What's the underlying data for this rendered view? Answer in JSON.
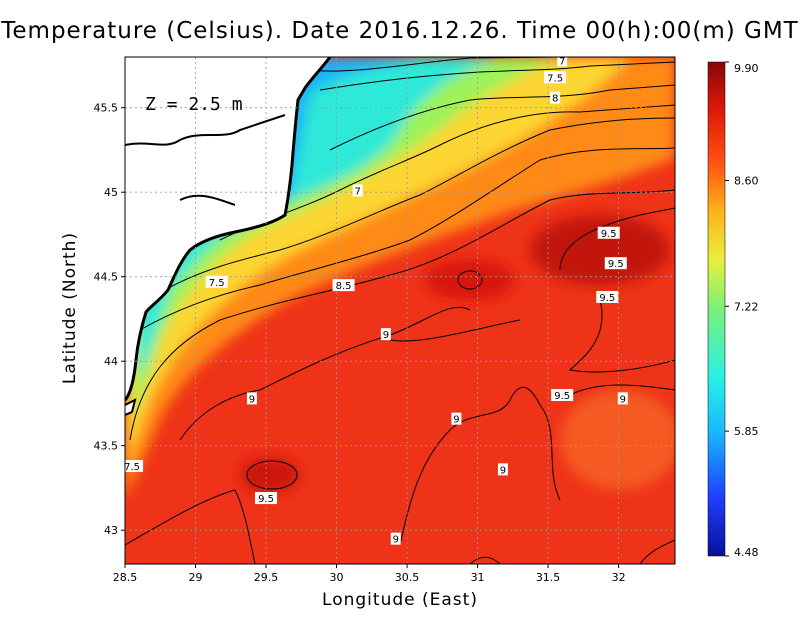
{
  "chart_data": {
    "type": "heatmap",
    "title": "Temperature (Celsius). Date 2016.12.26. Time 00(h):00(m)  GMT",
    "xlabel": "Longitude (East)",
    "ylabel": "Latitude (North)",
    "annotation": "Z = 2.5 m",
    "xlim": [
      28.5,
      32.4
    ],
    "ylim": [
      42.8,
      45.8
    ],
    "x_ticks": [
      "28.5",
      "29",
      "29.5",
      "30",
      "30.5",
      "31",
      "31.5",
      "32"
    ],
    "x_tick_values": [
      28.5,
      29,
      29.5,
      30,
      30.5,
      31,
      31.5,
      32
    ],
    "y_ticks": [
      "43",
      "43.5",
      "44",
      "44.5",
      "45",
      "45.5"
    ],
    "y_tick_values": [
      43,
      43.5,
      44,
      44.5,
      45,
      45.5
    ],
    "colorbar": {
      "min": 4.48,
      "max": 9.9,
      "tick_labels": [
        "9.90",
        "8.60",
        "7.22",
        "5.85",
        "4.48"
      ],
      "tick_values": [
        9.9,
        8.6,
        7.22,
        5.85,
        4.48
      ]
    },
    "grid": true,
    "colors": {
      "land": "#ffffff",
      "coast": "#000000",
      "contour": "#000000"
    },
    "contour_labels": [
      {
        "text": "7",
        "lon": 31.6,
        "lat": 45.78
      },
      {
        "text": "7.5",
        "lon": 31.55,
        "lat": 45.68
      },
      {
        "text": "8",
        "lon": 31.55,
        "lat": 45.56
      },
      {
        "text": "7",
        "lon": 30.15,
        "lat": 45.01
      },
      {
        "text": "9.5",
        "lon": 31.93,
        "lat": 44.76
      },
      {
        "text": "9.5",
        "lon": 31.98,
        "lat": 44.58
      },
      {
        "text": "7.5",
        "lon": 29.15,
        "lat": 44.47
      },
      {
        "text": "8.5",
        "lon": 30.05,
        "lat": 44.45
      },
      {
        "text": "9.5",
        "lon": 31.92,
        "lat": 44.38
      },
      {
        "text": "9",
        "lon": 30.35,
        "lat": 44.16
      },
      {
        "text": "9.5",
        "lon": 31.6,
        "lat": 43.8
      },
      {
        "text": "9",
        "lon": 32.03,
        "lat": 43.78
      },
      {
        "text": "9",
        "lon": 29.4,
        "lat": 43.78
      },
      {
        "text": "9",
        "lon": 30.85,
        "lat": 43.66
      },
      {
        "text": "7.5",
        "lon": 28.55,
        "lat": 43.38
      },
      {
        "text": "9",
        "lon": 31.18,
        "lat": 43.36
      },
      {
        "text": "9.5",
        "lon": 29.5,
        "lat": 43.19
      },
      {
        "text": "9",
        "lon": 30.42,
        "lat": 42.95
      }
    ]
  }
}
